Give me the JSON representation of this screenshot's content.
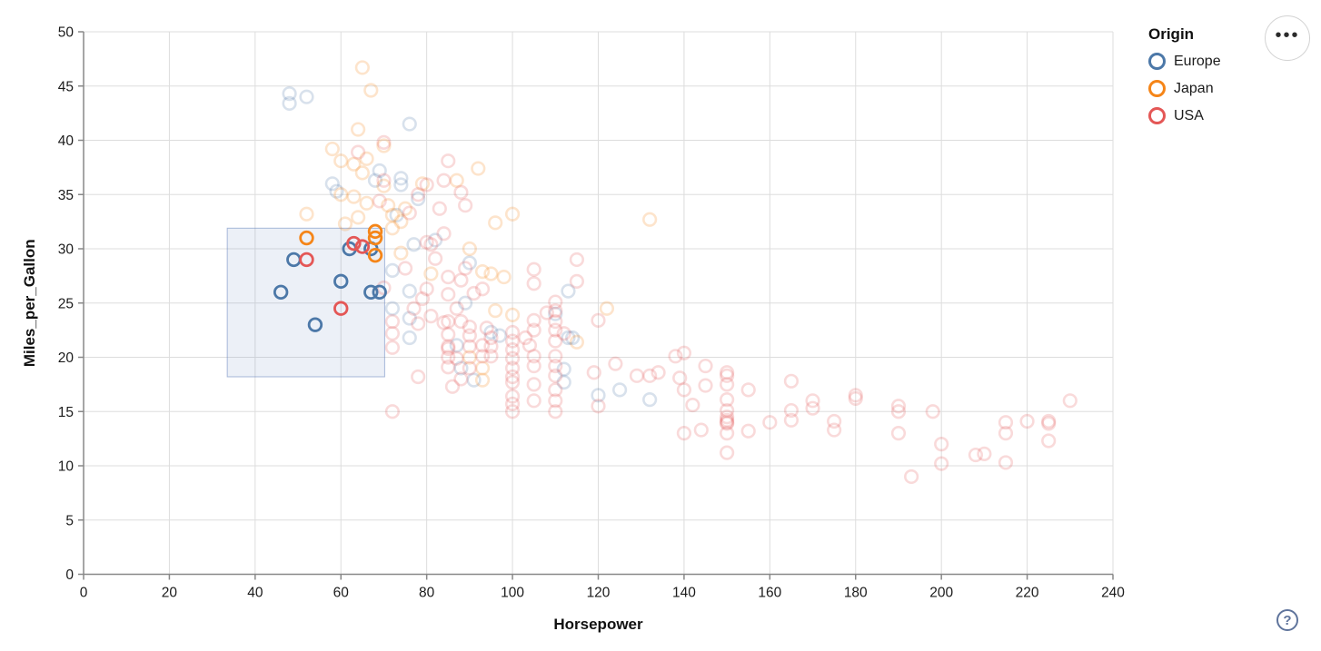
{
  "chart_data": {
    "type": "scatter",
    "title": "",
    "xlabel": "Horsepower",
    "ylabel": "Miles_per_Gallon",
    "xlim": [
      0,
      240
    ],
    "ylim": [
      0,
      50
    ],
    "x_ticks": [
      0,
      20,
      40,
      60,
      80,
      100,
      120,
      140,
      160,
      180,
      200,
      220,
      240
    ],
    "y_ticks": [
      0,
      5,
      10,
      15,
      20,
      25,
      30,
      35,
      40,
      45,
      50
    ],
    "grid": true,
    "point_style": "hollow-circle",
    "unselected_opacity": 0.22,
    "brush": {
      "x": [
        33.5,
        70.2
      ],
      "y": [
        18.2,
        31.9
      ]
    },
    "legend": {
      "title": "Origin",
      "position": "top-right",
      "entries": [
        {
          "label": "Europe",
          "color": "#4c78a8"
        },
        {
          "label": "Japan",
          "color": "#f58518"
        },
        {
          "label": "USA",
          "color": "#e45756"
        }
      ]
    },
    "series": [
      {
        "name": "Europe",
        "color": "#4c78a8",
        "selected": [
          [
            46,
            26
          ],
          [
            49,
            29
          ],
          [
            54,
            23
          ],
          [
            60,
            27
          ],
          [
            62,
            30
          ],
          [
            67,
            30
          ],
          [
            67,
            26
          ],
          [
            69,
            26
          ]
        ],
        "unselected": [
          [
            48,
            44.3
          ],
          [
            52,
            44
          ],
          [
            48,
            43.4
          ],
          [
            76,
            41.5
          ],
          [
            69,
            37.2
          ],
          [
            68,
            36.3
          ],
          [
            58,
            36
          ],
          [
            59,
            35.3
          ],
          [
            74,
            36.5
          ],
          [
            74,
            35.9
          ],
          [
            73,
            33.1
          ],
          [
            78,
            34.6
          ],
          [
            82,
            30.8
          ],
          [
            77,
            30.4
          ],
          [
            90,
            28.7
          ],
          [
            72,
            28
          ],
          [
            76,
            26.1
          ],
          [
            72,
            24.5
          ],
          [
            76,
            23.6
          ],
          [
            89,
            25
          ],
          [
            87,
            21.1
          ],
          [
            88,
            19
          ],
          [
            91,
            17.9
          ],
          [
            76,
            21.8
          ],
          [
            95,
            22.3
          ],
          [
            97,
            22
          ],
          [
            110,
            24
          ],
          [
            113,
            26.1
          ],
          [
            113,
            21.8
          ],
          [
            114,
            21.8
          ],
          [
            112,
            18.9
          ],
          [
            112,
            17.7
          ],
          [
            120,
            16.5
          ],
          [
            125,
            17
          ],
          [
            132,
            16.1
          ]
        ]
      },
      {
        "name": "Japan",
        "color": "#f58518",
        "selected": [
          [
            52,
            31
          ],
          [
            68,
            31.6
          ],
          [
            68,
            31
          ],
          [
            68,
            29.4
          ]
        ],
        "unselected": [
          [
            65,
            46.7
          ],
          [
            67,
            44.6
          ],
          [
            64,
            41
          ],
          [
            70,
            39.5
          ],
          [
            58,
            39.2
          ],
          [
            60,
            38.1
          ],
          [
            63,
            37.8
          ],
          [
            66,
            38.3
          ],
          [
            65,
            37
          ],
          [
            70,
            35.8
          ],
          [
            60,
            35
          ],
          [
            63,
            34.8
          ],
          [
            66,
            34.2
          ],
          [
            71,
            34
          ],
          [
            75,
            33.7
          ],
          [
            52,
            33.2
          ],
          [
            64,
            32.9
          ],
          [
            61,
            32.3
          ],
          [
            72,
            31.9
          ],
          [
            74,
            32.5
          ],
          [
            72,
            33.1
          ],
          [
            79,
            36
          ],
          [
            87,
            36.3
          ],
          [
            92,
            37.4
          ],
          [
            96,
            32.4
          ],
          [
            100,
            33.2
          ],
          [
            132,
            32.7
          ],
          [
            74,
            29.6
          ],
          [
            90,
            30
          ],
          [
            93,
            27.9
          ],
          [
            95,
            27.7
          ],
          [
            98,
            27.4
          ],
          [
            81,
            27.7
          ],
          [
            90,
            20
          ],
          [
            93,
            19
          ],
          [
            93,
            17.9
          ],
          [
            96,
            24.3
          ],
          [
            100,
            23.9
          ],
          [
            115,
            21.4
          ],
          [
            122,
            24.5
          ]
        ]
      },
      {
        "name": "USA",
        "color": "#e45756",
        "selected": [
          [
            52,
            29
          ],
          [
            60,
            24.5
          ],
          [
            63,
            30.5
          ],
          [
            65,
            30.2
          ]
        ],
        "unselected": [
          [
            85,
            38.1
          ],
          [
            70,
            39.8
          ],
          [
            64,
            38.9
          ],
          [
            80,
            35.9
          ],
          [
            78,
            35
          ],
          [
            69,
            34.4
          ],
          [
            70,
            36.3
          ],
          [
            84,
            36.3
          ],
          [
            88,
            35.2
          ],
          [
            83,
            33.7
          ],
          [
            89,
            34
          ],
          [
            76,
            33.3
          ],
          [
            81,
            30.4
          ],
          [
            80,
            30.6
          ],
          [
            84,
            31.4
          ],
          [
            75,
            28.2
          ],
          [
            82,
            29.1
          ],
          [
            89,
            28.2
          ],
          [
            85,
            27.4
          ],
          [
            88,
            27.1
          ],
          [
            91,
            25.9
          ],
          [
            93,
            26.3
          ],
          [
            87,
            24.5
          ],
          [
            85,
            25.8
          ],
          [
            80,
            26.3
          ],
          [
            79,
            25.4
          ],
          [
            77,
            24.5
          ],
          [
            70,
            26.4
          ],
          [
            72,
            23.3
          ],
          [
            81,
            23.8
          ],
          [
            85,
            23.3
          ],
          [
            72,
            22.2
          ],
          [
            72,
            20.9
          ],
          [
            78,
            23.1
          ],
          [
            78,
            18.2
          ],
          [
            72,
            15
          ],
          [
            84,
            23.2
          ],
          [
            88,
            23.3
          ],
          [
            90,
            22.8
          ],
          [
            85,
            22.1
          ],
          [
            90,
            22
          ],
          [
            85,
            21
          ],
          [
            90,
            21
          ],
          [
            93,
            21.1
          ],
          [
            85,
            20
          ],
          [
            87,
            19.9
          ],
          [
            93,
            20.1
          ],
          [
            85,
            19.1
          ],
          [
            90,
            19
          ],
          [
            88,
            18
          ],
          [
            86,
            17.3
          ],
          [
            85,
            20.8
          ],
          [
            94,
            22.7
          ],
          [
            95,
            21.8
          ],
          [
            95,
            21
          ],
          [
            95,
            20.1
          ],
          [
            100,
            20.7
          ],
          [
            100,
            19.9
          ],
          [
            100,
            19
          ],
          [
            100,
            18.2
          ],
          [
            104,
            21.1
          ],
          [
            105,
            20.1
          ],
          [
            105,
            19.2
          ],
          [
            108,
            24.1
          ],
          [
            112,
            22.2
          ],
          [
            110,
            20.1
          ],
          [
            110,
            19.2
          ],
          [
            110,
            18.3
          ],
          [
            119,
            18.6
          ],
          [
            105,
            28.1
          ],
          [
            105,
            26.8
          ],
          [
            115,
            29
          ],
          [
            115,
            27
          ],
          [
            110,
            25.1
          ],
          [
            110,
            24.3
          ],
          [
            110,
            23.3
          ],
          [
            110,
            22.5
          ],
          [
            110,
            21.5
          ],
          [
            105,
            23.4
          ],
          [
            105,
            22.5
          ],
          [
            103,
            21.8
          ],
          [
            100,
            22.3
          ],
          [
            100,
            21.5
          ],
          [
            100,
            17.7
          ],
          [
            100,
            16.4
          ],
          [
            100,
            15.7
          ],
          [
            100,
            15
          ],
          [
            105,
            17.5
          ],
          [
            105,
            16
          ],
          [
            110,
            17
          ],
          [
            110,
            16
          ],
          [
            110,
            15
          ],
          [
            120,
            15.5
          ],
          [
            120,
            23.4
          ],
          [
            124,
            19.4
          ],
          [
            129,
            18.3
          ],
          [
            132,
            18.3
          ],
          [
            134,
            18.6
          ],
          [
            138,
            20.1
          ],
          [
            140,
            20.4
          ],
          [
            139,
            18.1
          ],
          [
            140,
            17
          ],
          [
            142,
            15.6
          ],
          [
            140,
            13
          ],
          [
            144,
            13.3
          ],
          [
            145,
            19.2
          ],
          [
            145,
            17.4
          ],
          [
            150,
            18.6
          ],
          [
            150,
            18.3
          ],
          [
            150,
            17.5
          ],
          [
            150,
            16.1
          ],
          [
            150,
            15.1
          ],
          [
            150,
            14.5
          ],
          [
            150,
            14.2
          ],
          [
            150,
            14
          ],
          [
            150,
            13.9
          ],
          [
            150,
            13
          ],
          [
            150,
            11.2
          ],
          [
            155,
            17
          ],
          [
            155,
            13.2
          ],
          [
            160,
            14
          ],
          [
            165,
            17.8
          ],
          [
            165,
            15.1
          ],
          [
            165,
            14.2
          ],
          [
            170,
            16
          ],
          [
            170,
            15.3
          ],
          [
            175,
            14.1
          ],
          [
            175,
            13.3
          ],
          [
            180,
            16.5
          ],
          [
            180,
            16.2
          ],
          [
            190,
            15.5
          ],
          [
            190,
            15
          ],
          [
            190,
            13
          ],
          [
            193,
            9
          ],
          [
            198,
            15
          ],
          [
            200,
            12
          ],
          [
            200,
            10.2
          ],
          [
            208,
            11
          ],
          [
            210,
            11.1
          ],
          [
            215,
            14
          ],
          [
            215,
            13
          ],
          [
            215,
            10.3
          ],
          [
            220,
            14.1
          ],
          [
            225,
            14.1
          ],
          [
            225,
            13.9
          ],
          [
            225,
            12.3
          ],
          [
            230,
            16
          ]
        ]
      }
    ]
  },
  "controls": {
    "ellipsis_glyph": "•••",
    "help_glyph": "?"
  },
  "colors": {
    "grid": "#dddddd",
    "axis": "#888888",
    "tick_label": "#1b1b1b",
    "brush_fill": "rgba(99,134,186,0.12)",
    "brush_stroke": "rgba(100,130,190,0.55)"
  }
}
